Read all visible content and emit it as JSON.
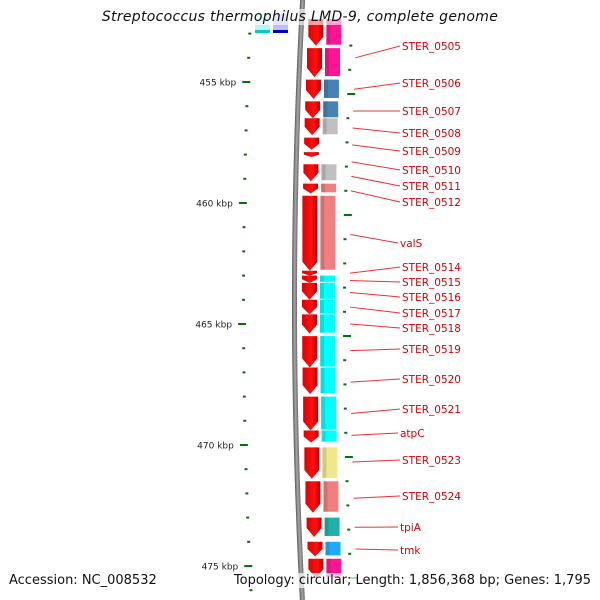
{
  "title": "Streptococcus thermophilus LMD-9, complete genome",
  "footer": {
    "accession": "Accession: NC_008532",
    "summary": "Topology: circular; Length: 1,856,368 bp; Genes: 1,795"
  },
  "colors": {
    "cds": "#ff0000",
    "backbone": "#808080",
    "tick": "#007700",
    "label": "#dd0000",
    "label_line": "#ee3333"
  },
  "ruler": {
    "unit": "kbp",
    "major_ticks": [
      {
        "kbp": 455,
        "label": "455 kbp"
      },
      {
        "kbp": 460,
        "label": "460 kbp"
      },
      {
        "kbp": 465,
        "label": "465 kbp"
      },
      {
        "kbp": 470,
        "label": "470 kbp"
      },
      {
        "kbp": 475,
        "label": "475 kbp"
      }
    ],
    "minor_tick_interval_kbp": 1
  },
  "cds_features": [
    {
      "start_kbp": 452.4,
      "end_kbp": 453.5,
      "cog_color": "#ff1493"
    },
    {
      "start_kbp": 453.6,
      "end_kbp": 454.8,
      "cog_color": "#ff1493"
    },
    {
      "start_kbp": 454.9,
      "end_kbp": 455.7,
      "cog_color": "#4682b4"
    },
    {
      "start_kbp": 455.8,
      "end_kbp": 456.5,
      "cog_color": "#4682b4"
    },
    {
      "start_kbp": 456.5,
      "end_kbp": 457.2,
      "cog_color": "#c0c0c0"
    },
    {
      "start_kbp": 457.3,
      "end_kbp": 457.8,
      "cog_color": ""
    },
    {
      "start_kbp": 457.9,
      "end_kbp": 458.1,
      "cog_color": ""
    },
    {
      "start_kbp": 458.4,
      "end_kbp": 459.1,
      "cog_color": "#c0c0c0"
    },
    {
      "start_kbp": 459.2,
      "end_kbp": 459.6,
      "cog_color": "#f08080"
    },
    {
      "start_kbp": 459.7,
      "end_kbp": 462.8,
      "cog_color": "#f08080"
    },
    {
      "start_kbp": 462.8,
      "end_kbp": 463.0,
      "cog_color": ""
    },
    {
      "start_kbp": 463.0,
      "end_kbp": 463.3,
      "cog_color": "#00ffff"
    },
    {
      "start_kbp": 463.3,
      "end_kbp": 464.0,
      "cog_color": "#00ffff"
    },
    {
      "start_kbp": 464.0,
      "end_kbp": 464.6,
      "cog_color": "#00ffff"
    },
    {
      "start_kbp": 464.6,
      "end_kbp": 465.4,
      "cog_color": "#00ffff"
    },
    {
      "start_kbp": 465.5,
      "end_kbp": 466.8,
      "cog_color": "#00ffff"
    },
    {
      "start_kbp": 466.8,
      "end_kbp": 467.9,
      "cog_color": "#00ffff"
    },
    {
      "start_kbp": 468.0,
      "end_kbp": 469.4,
      "cog_color": "#00ffff"
    },
    {
      "start_kbp": 469.4,
      "end_kbp": 469.9,
      "cog_color": "#00ffff"
    },
    {
      "start_kbp": 470.1,
      "end_kbp": 471.4,
      "cog_color": "#f0e68c"
    },
    {
      "start_kbp": 471.5,
      "end_kbp": 472.8,
      "cog_color": "#f08080"
    },
    {
      "start_kbp": 473.0,
      "end_kbp": 473.8,
      "cog_color": "#20b2aa"
    },
    {
      "start_kbp": 474.0,
      "end_kbp": 474.6,
      "cog_color": "#1eaaff"
    },
    {
      "start_kbp": 474.7,
      "end_kbp": 475.5,
      "cog_color": "#ff1493"
    }
  ],
  "gene_labels": [
    {
      "name": "STER_0505",
      "kbp": 454.0
    },
    {
      "name": "STER_0506",
      "kbp": 455.3
    },
    {
      "name": "STER_0507",
      "kbp": 456.2
    },
    {
      "name": "STER_0508",
      "kbp": 456.9
    },
    {
      "name": "STER_0509",
      "kbp": 457.6
    },
    {
      "name": "STER_0510",
      "kbp": 458.3
    },
    {
      "name": "STER_0511",
      "kbp": 458.9
    },
    {
      "name": "STER_0512",
      "kbp": 459.5
    },
    {
      "name": "valS",
      "kbp": 461.3
    },
    {
      "name": "STER_0514",
      "kbp": 462.9
    },
    {
      "name": "STER_0515",
      "kbp": 463.2
    },
    {
      "name": "STER_0516",
      "kbp": 463.7
    },
    {
      "name": "STER_0517",
      "kbp": 464.3
    },
    {
      "name": "STER_0518",
      "kbp": 465.0
    },
    {
      "name": "STER_0519",
      "kbp": 466.1
    },
    {
      "name": "STER_0520",
      "kbp": 467.4
    },
    {
      "name": "STER_0521",
      "kbp": 468.7
    },
    {
      "name": "atpC",
      "kbp": 469.6
    },
    {
      "name": "STER_0523",
      "kbp": 470.7
    },
    {
      "name": "STER_0524",
      "kbp": 472.2
    },
    {
      "name": "tpiA",
      "kbp": 473.4
    },
    {
      "name": "tmk",
      "kbp": 474.3
    }
  ],
  "top_legend_swatches": [
    "#00cccc",
    "#0000cc"
  ]
}
